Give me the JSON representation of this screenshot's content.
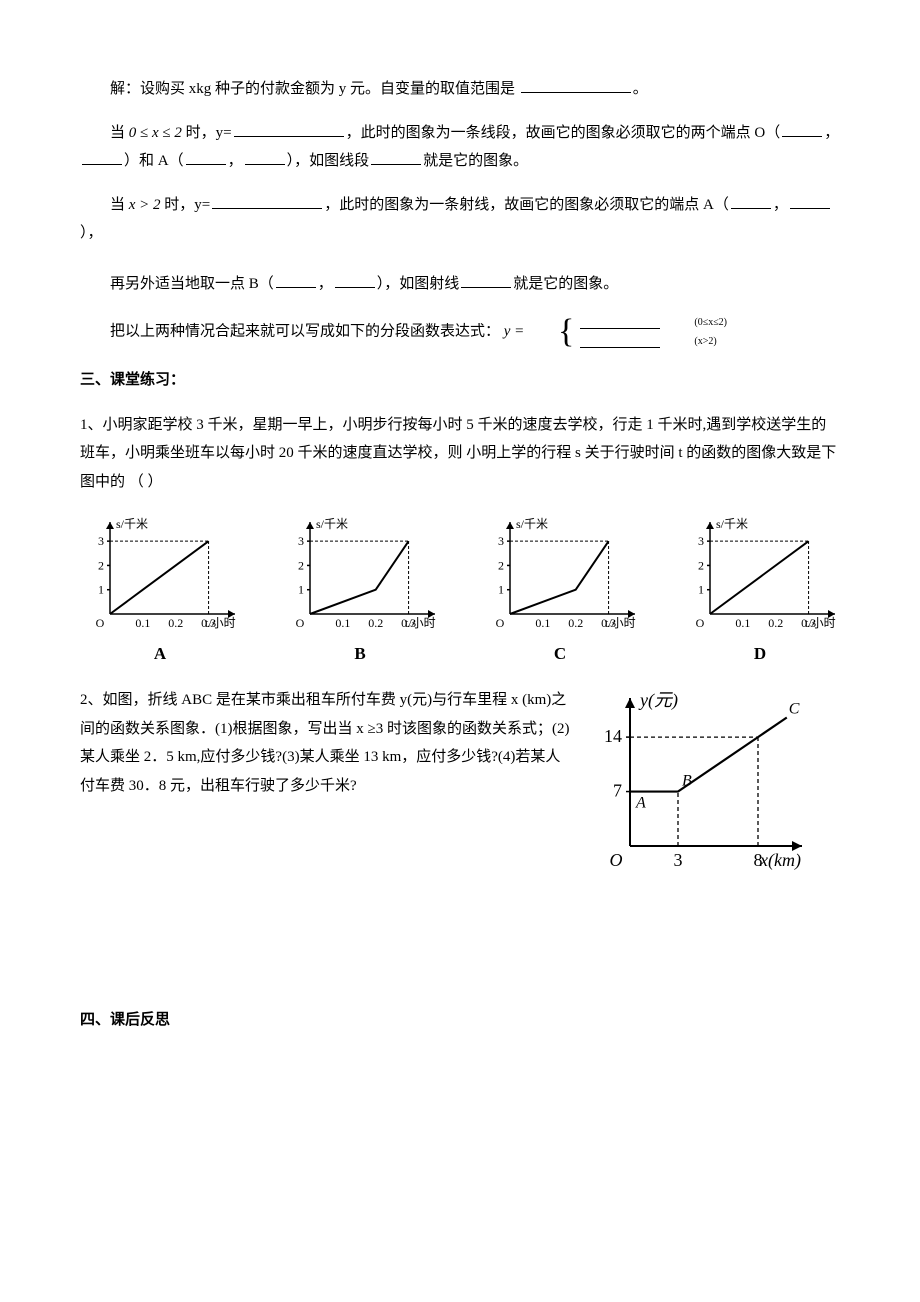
{
  "intro": {
    "line1_pre": "解：设购买 xkg 种子的付款金额为 y 元。自变量的取值范围是",
    "case1_pre": "当",
    "case1_cond": "0 ≤ x ≤ 2",
    "case1_mid1": "时，y=",
    "case1_mid2": "，此时的图象为一条线段，故画它的图象必须取它的两个端点 O（",
    "case1_mid3": "，",
    "case1_mid4": "）和 A（",
    "case1_mid5": "，",
    "case1_mid6": "），如图线段",
    "case1_end": "就是它的图象。",
    "case2_pre": "当",
    "case2_cond": "x > 2",
    "case2_mid1": "时，y=",
    "case2_mid2": "，此时的图象为一条射线，故画它的图象必须取它的端点 A（",
    "case2_mid3": "，",
    "case2_mid4": "），",
    "extra_pre": "再另外适当地取一点 B（",
    "extra_mid1": "，",
    "extra_mid2": "），如图射线",
    "extra_end": "就是它的图象。",
    "piecewise_pre": "把以上两种情况合起来就可以写成如下的分段函数表达式：",
    "piecewise_y": "y =",
    "piecewise_cond1": "(0≤x≤2)",
    "piecewise_cond2": "(x>2)"
  },
  "section3": {
    "title": "三、课堂练习：",
    "q1": "1、小明家距学校 3 千米，星期一早上，小明步行按每小时 5 千米的速度去学校，行走 1 千米时,遇到学校送学生的班车，小明乘坐班车以每小时 20 千米的速度直达学校，则 小明上学的行程 s 关于行驶时间 t 的函数的图像大致是下图中的 （    ）",
    "charts": {
      "y_label": "s/千米",
      "x_label": "t/小时",
      "y_ticks": [
        "1",
        "2",
        "3"
      ],
      "x_ticks": [
        "0.1",
        "0.2",
        "0.3"
      ],
      "labels": [
        "A",
        "B",
        "C",
        "D"
      ],
      "stroke": "#000000",
      "dash": "3,2",
      "A": {
        "pts": [
          [
            0,
            0
          ],
          [
            0.1,
            1
          ],
          [
            0.3,
            3
          ]
        ],
        "dash_x": 0.3,
        "dash_y": 3
      },
      "B": {
        "pts": [
          [
            0,
            0
          ],
          [
            0.2,
            1
          ],
          [
            0.3,
            3
          ]
        ],
        "dash_x": 0.3,
        "dash_y": 3
      },
      "C": {
        "pts": [
          [
            0,
            0
          ],
          [
            0.2,
            1
          ],
          [
            0.3,
            3
          ]
        ],
        "alt_pts": [
          [
            0,
            0
          ],
          [
            0.1,
            0.5
          ],
          [
            0.2,
            1
          ],
          [
            0.3,
            3
          ]
        ],
        "dash_x": 0.3,
        "dash_y": 3
      },
      "D": {
        "pts": [
          [
            0,
            0
          ],
          [
            0.1,
            1
          ],
          [
            0.3,
            3
          ]
        ],
        "alt_pts": [
          [
            0,
            0
          ],
          [
            0.3,
            3
          ]
        ],
        "dash_x": 0.3,
        "dash_y": 3
      }
    },
    "q2": "2、如图，折线 ABC 是在某市乘出租车所付车费 y(元)与行车里程 x (km)之间的函数关系图象．(1)根据图象，写出当 x ≥3 时该图象的函数关系式；(2)某人乘坐 2．5 km,应付多少钱?(3)某人乘坐 13 km，应付多少钱?(4)若某人付车费 30．8 元，出租车行驶了多少千米?",
    "fare_chart": {
      "y_label": "y(元)",
      "x_label": "x(km)",
      "y_ticks": [
        "7",
        "14"
      ],
      "x_ticks": [
        "3",
        "8"
      ],
      "points": {
        "A": [
          0,
          7
        ],
        "B": [
          3,
          7
        ],
        "C": [
          8,
          14
        ]
      },
      "origin": "O",
      "stroke": "#000000"
    }
  },
  "section4": {
    "title": "四、课后反思"
  }
}
